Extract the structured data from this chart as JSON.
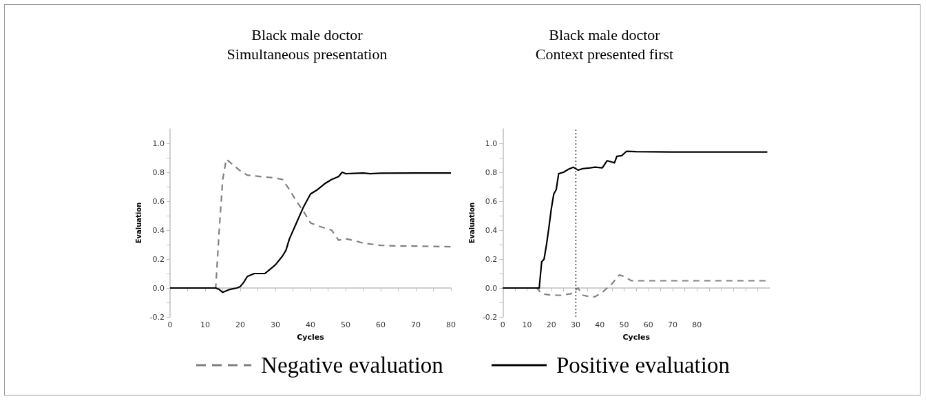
{
  "chart_data": [
    {
      "type": "line",
      "title": "Black male doctor",
      "subtitle": "Simultaneous presentation",
      "xlabel": "Cycles",
      "ylabel": "Evaluation",
      "xlim": [
        0,
        80
      ],
      "xticks": [
        0,
        {
          "value": 5,
          "label": null
        },
        10,
        {
          "value": 15,
          "label": null
        },
        20,
        {
          "value": 25,
          "label": null
        },
        30,
        {
          "value": 35,
          "label": null
        },
        40,
        {
          "value": 45,
          "label": null
        },
        50,
        {
          "value": 55,
          "label": null
        },
        60,
        {
          "value": 65,
          "label": null
        },
        70,
        {
          "value": 75,
          "label": null
        },
        80
      ],
      "ylim": [
        -0.2,
        1.1
      ],
      "yticks": [
        -0.2,
        {
          "value": -0.1,
          "label": null
        },
        {
          "value": 0,
          "label": "0.0"
        },
        {
          "value": 0.1,
          "label": null
        },
        0.2,
        {
          "value": 0.3,
          "label": null
        },
        0.4,
        {
          "value": 0.5,
          "label": null
        },
        0.6,
        {
          "value": 0.7,
          "label": null
        },
        0.8,
        {
          "value": 0.9,
          "label": null
        },
        {
          "value": 1,
          "label": "1.0"
        }
      ],
      "legend": "bottom",
      "marker": "none",
      "series": [
        {
          "name": "Negative evaluation",
          "color": "#808080",
          "line_style": "dashed",
          "x": [
            0,
            13,
            14,
            15,
            16,
            18,
            20,
            22,
            26,
            30,
            32,
            34,
            36,
            38,
            40,
            42,
            46,
            48,
            50,
            52,
            55,
            60,
            65,
            70,
            80
          ],
          "values": [
            0,
            0,
            0.4,
            0.75,
            0.89,
            0.85,
            0.81,
            0.78,
            0.77,
            0.76,
            0.75,
            0.68,
            0.6,
            0.53,
            0.45,
            0.43,
            0.4,
            0.33,
            0.34,
            0.33,
            0.31,
            0.295,
            0.29,
            0.29,
            0.285
          ]
        },
        {
          "name": "Positive evaluation",
          "color": "#000000",
          "line_style": "solid",
          "x": [
            0,
            13,
            14,
            15,
            17,
            19,
            20,
            21,
            22,
            24,
            27,
            28,
            30,
            32,
            33,
            34,
            36,
            38,
            40,
            42,
            44,
            46,
            48,
            49,
            50,
            55,
            57,
            60,
            70,
            80
          ],
          "values": [
            0,
            0,
            -0.01,
            -0.03,
            -0.01,
            0,
            0.01,
            0.04,
            0.08,
            0.1,
            0.1,
            0.12,
            0.16,
            0.22,
            0.26,
            0.34,
            0.45,
            0.56,
            0.65,
            0.68,
            0.72,
            0.75,
            0.77,
            0.8,
            0.79,
            0.795,
            0.79,
            0.793,
            0.795,
            0.795
          ]
        }
      ]
    },
    {
      "type": "line",
      "title": "Black male doctor",
      "subtitle": "Context presented first",
      "xlabel": "Cycles",
      "ylabel": "Evaluation",
      "xlim": [
        0,
        110
      ],
      "xticks": [
        0,
        {
          "value": 5,
          "label": null
        },
        10,
        {
          "value": 15,
          "label": null
        },
        20,
        {
          "value": 25,
          "label": null
        },
        30,
        {
          "value": 35,
          "label": null
        },
        40,
        {
          "value": 45,
          "label": null
        },
        50,
        {
          "value": 55,
          "label": null
        },
        60,
        {
          "value": 65,
          "label": null
        },
        70,
        {
          "value": 75,
          "label": null
        },
        80,
        {
          "value": 85,
          "label": null
        },
        {
          "value": 90,
          "label": null
        },
        {
          "value": 95,
          "label": null
        },
        {
          "value": 100,
          "label": null
        },
        {
          "value": 105,
          "label": null
        }
      ],
      "ylim": [
        -0.2,
        1.1
      ],
      "yticks": [
        -0.2,
        {
          "value": -0.1,
          "label": null
        },
        {
          "value": 0,
          "label": "0.0"
        },
        {
          "value": 0.1,
          "label": null
        },
        0.2,
        {
          "value": 0.3,
          "label": null
        },
        0.4,
        {
          "value": 0.5,
          "label": null
        },
        0.6,
        {
          "value": 0.7,
          "label": null
        },
        0.8,
        {
          "value": 0.9,
          "label": null
        },
        {
          "value": 1,
          "label": "1.0"
        }
      ],
      "legend": "bottom",
      "marker": "none",
      "ref_lines": [
        {
          "axis": "x",
          "value": 30,
          "color": "#000000",
          "line_style": "dotted"
        }
      ],
      "series": [
        {
          "name": "Negative evaluation",
          "color": "#808080",
          "line_style": "dashed",
          "x": [
            0,
            14,
            16,
            20,
            24,
            28,
            31,
            33,
            36,
            38,
            41,
            43,
            45,
            48,
            50,
            53,
            109
          ],
          "values": [
            0,
            0,
            -0.04,
            -0.05,
            -0.05,
            -0.04,
            0,
            -0.05,
            -0.06,
            -0.06,
            -0.03,
            0,
            0.03,
            0.09,
            0.08,
            0.05,
            0.05
          ]
        },
        {
          "name": "Positive evaluation",
          "color": "#000000",
          "line_style": "solid",
          "x": [
            0,
            15,
            16,
            17,
            18,
            19,
            20,
            21,
            22,
            23,
            25,
            27,
            29,
            31,
            33,
            36,
            38,
            41,
            43,
            45,
            46,
            47,
            49,
            50,
            51,
            55,
            70,
            109
          ],
          "values": [
            0,
            0,
            0.18,
            0.2,
            0.3,
            0.42,
            0.55,
            0.65,
            0.68,
            0.79,
            0.8,
            0.82,
            0.835,
            0.815,
            0.825,
            0.83,
            0.835,
            0.83,
            0.88,
            0.87,
            0.865,
            0.91,
            0.915,
            0.93,
            0.945,
            0.942,
            0.94,
            0.94
          ]
        }
      ]
    }
  ]
}
